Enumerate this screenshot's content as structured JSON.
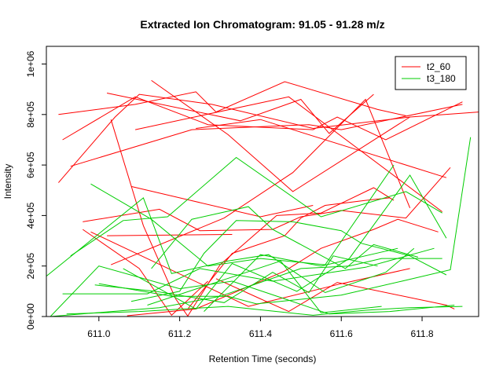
{
  "chart_data": {
    "type": "line",
    "title": "Extracted Ion Chromatogram: 91.05 - 91.28 m/z",
    "xlabel": "Retention Time (seconds)",
    "ylabel": "Intensity",
    "xlim": [
      610.87,
      611.94
    ],
    "ylim": [
      0,
      1070000
    ],
    "x_ticks": [
      {
        "value": 611.0,
        "label": "611.0"
      },
      {
        "value": 611.2,
        "label": "611.2"
      },
      {
        "value": 611.4,
        "label": "611.4"
      },
      {
        "value": 611.6,
        "label": "611.6"
      },
      {
        "value": 611.8,
        "label": "611.8"
      }
    ],
    "y_ticks": [
      {
        "value": 0,
        "label": "0e+00"
      },
      {
        "value": 200000,
        "label": "2e+05"
      },
      {
        "value": 400000,
        "label": "4e+05"
      },
      {
        "value": 600000,
        "label": "6e+05"
      },
      {
        "value": 800000,
        "label": "8e+05"
      },
      {
        "value": 1000000,
        "label": "1e+06"
      }
    ],
    "grid": false,
    "legend_position": "top-right",
    "series": [
      {
        "name": "t2_60",
        "color": "#ff0000",
        "segments": [
          [
            [
              610.9,
              530000
            ],
            [
              611.04,
              790000
            ],
            [
              611.1,
              880000
            ],
            [
              611.28,
              840000
            ],
            [
              611.53,
              745000
            ],
            [
              611.77,
              790000
            ],
            [
              611.94,
              810000
            ]
          ],
          [
            [
              610.9,
              800000
            ],
            [
              611.09,
              840000
            ],
            [
              611.24,
              890000
            ],
            [
              611.29,
              810000
            ],
            [
              611.46,
              930000
            ],
            [
              611.69,
              820000
            ],
            [
              611.76,
              795000
            ]
          ],
          [
            [
              610.91,
              700000
            ],
            [
              611.09,
              870000
            ],
            [
              611.27,
              760000
            ],
            [
              611.53,
              740000
            ],
            [
              611.59,
              790000
            ],
            [
              611.71,
              700000
            ],
            [
              611.9,
              850000
            ]
          ],
          [
            [
              611.02,
              885000
            ],
            [
              611.35,
              775000
            ],
            [
              611.5,
              860000
            ],
            [
              611.57,
              725000
            ],
            [
              611.68,
              880000
            ]
          ],
          [
            [
              611.13,
              935000
            ],
            [
              611.32,
              720000
            ],
            [
              611.48,
              495000
            ],
            [
              611.77,
              790000
            ]
          ],
          [
            [
              611.24,
              745000
            ],
            [
              611.4,
              780000
            ],
            [
              611.86,
              550000
            ]
          ],
          [
            [
              611.09,
              740000
            ],
            [
              611.47,
              870000
            ],
            [
              611.85,
              415000
            ]
          ],
          [
            [
              610.93,
              595000
            ],
            [
              611.23,
              740000
            ],
            [
              611.52,
              760000
            ],
            [
              611.6,
              740000
            ],
            [
              611.9,
              840000
            ]
          ],
          [
            [
              611.03,
              205000
            ],
            [
              611.31,
              390000
            ],
            [
              611.48,
              570000
            ],
            [
              611.66,
              860000
            ],
            [
              611.77,
              430000
            ]
          ],
          [
            [
              611.07,
              3000
            ],
            [
              611.24,
              30000
            ],
            [
              611.46,
              180000
            ],
            [
              611.55,
              270000
            ],
            [
              611.68,
              345000
            ],
            [
              611.74,
              385000
            ],
            [
              611.84,
              335000
            ]
          ],
          [
            [
              610.96,
              345000
            ],
            [
              611.1,
              190000
            ],
            [
              611.18,
              5000
            ],
            [
              611.27,
              140000
            ]
          ],
          [
            [
              611.03,
              780000
            ],
            [
              611.11,
              360000
            ],
            [
              611.19,
              70000
            ],
            [
              611.22,
              2000
            ],
            [
              611.3,
              205000
            ],
            [
              611.44,
              400000
            ],
            [
              611.55,
              410000
            ],
            [
              611.68,
              510000
            ],
            [
              611.73,
              460000
            ]
          ],
          [
            [
              610.96,
              375000
            ],
            [
              611.15,
              425000
            ],
            [
              611.25,
              340000
            ],
            [
              611.43,
              345000
            ],
            [
              611.5,
              395000
            ],
            [
              611.6,
              420000
            ],
            [
              611.76,
              390000
            ],
            [
              611.87,
              590000
            ]
          ],
          [
            [
              610.98,
              335000
            ],
            [
              611.37,
              40000
            ],
            [
              611.6,
              130000
            ],
            [
              611.77,
              190000
            ]
          ],
          [
            [
              611.08,
              515000
            ],
            [
              611.4,
              395000
            ],
            [
              611.53,
              440000
            ]
          ],
          [
            [
              611.02,
              320000
            ],
            [
              611.33,
              325000
            ]
          ],
          [
            [
              611.22,
              30000
            ],
            [
              611.33,
              250000
            ],
            [
              611.46,
              320000
            ],
            [
              611.5,
              390000
            ],
            [
              611.56,
              440000
            ],
            [
              611.66,
              460000
            ],
            [
              611.72,
              470000
            ]
          ],
          [
            [
              611.29,
              150000
            ],
            [
              611.4,
              70000
            ],
            [
              611.47,
              20000
            ],
            [
              611.59,
              135000
            ],
            [
              611.86,
              45000
            ],
            [
              611.88,
              30000
            ]
          ]
        ]
      },
      {
        "name": "t3_180",
        "color": "#00cd00",
        "segments": [
          [
            [
              610.87,
              160000
            ],
            [
              611.11,
              470000
            ],
            [
              611.18,
              170000
            ],
            [
              611.32,
              220000
            ],
            [
              611.42,
              245000
            ],
            [
              611.56,
              95000
            ],
            [
              611.71,
              175000
            ],
            [
              611.78,
              270000
            ]
          ],
          [
            [
              610.93,
              240000
            ],
            [
              611.06,
              380000
            ],
            [
              611.17,
              395000
            ],
            [
              611.34,
              630000
            ],
            [
              611.55,
              395000
            ],
            [
              611.76,
              495000
            ],
            [
              611.85,
              410000
            ]
          ],
          [
            [
              610.98,
              525000
            ],
            [
              611.13,
              385000
            ],
            [
              611.27,
              200000
            ],
            [
              611.4,
              230000
            ],
            [
              611.56,
              205000
            ],
            [
              611.73,
              600000
            ]
          ],
          [
            [
              610.91,
              90000
            ],
            [
              611.12,
              90000
            ],
            [
              611.25,
              190000
            ],
            [
              611.43,
              140000
            ],
            [
              611.66,
              195000
            ],
            [
              611.83,
              270000
            ]
          ],
          [
            [
              610.88,
              0
            ],
            [
              611.0,
              200000
            ],
            [
              611.2,
              110000
            ],
            [
              611.33,
              140000
            ],
            [
              611.46,
              70000
            ],
            [
              611.57,
              10000
            ],
            [
              611.72,
              20000
            ],
            [
              611.88,
              45000
            ]
          ],
          [
            [
              610.99,
              125000
            ],
            [
              611.14,
              100000
            ],
            [
              611.31,
              55000
            ],
            [
              611.43,
              175000
            ],
            [
              611.52,
              95000
            ],
            [
              611.58,
              240000
            ],
            [
              611.69,
              200000
            ]
          ],
          [
            [
              611.0,
              130000
            ],
            [
              611.18,
              80000
            ],
            [
              611.32,
              80000
            ],
            [
              611.39,
              50000
            ],
            [
              611.6,
              85000
            ],
            [
              611.75,
              140000
            ],
            [
              611.87,
              185000
            ],
            [
              611.92,
              710000
            ]
          ],
          [
            [
              611.13,
              190000
            ],
            [
              611.23,
              385000
            ],
            [
              611.37,
              435000
            ],
            [
              611.43,
              345000
            ],
            [
              611.61,
              190000
            ],
            [
              611.68,
              285000
            ],
            [
              611.79,
              235000
            ]
          ],
          [
            [
              611.08,
              60000
            ],
            [
              611.2,
              100000
            ],
            [
              611.26,
              250000
            ],
            [
              611.34,
              380000
            ],
            [
              611.48,
              375000
            ],
            [
              611.6,
              340000
            ],
            [
              611.65,
              290000
            ],
            [
              611.77,
              240000
            ],
            [
              611.86,
              165000
            ]
          ],
          [
            [
              611.06,
              190000
            ],
            [
              611.24,
              30000
            ],
            [
              611.33,
              210000
            ],
            [
              611.49,
              100000
            ],
            [
              611.62,
              230000
            ],
            [
              611.77,
              560000
            ],
            [
              611.86,
              310000
            ]
          ],
          [
            [
              610.92,
              10000
            ],
            [
              611.1,
              20000
            ],
            [
              611.32,
              40000
            ],
            [
              611.53,
              5000
            ],
            [
              611.66,
              25000
            ],
            [
              611.77,
              35000
            ],
            [
              611.9,
              40000
            ]
          ],
          [
            [
              610.88,
              0
            ],
            [
              611.15,
              35000
            ],
            [
              611.3,
              80000
            ],
            [
              611.5,
              190000
            ],
            [
              611.62,
              200000
            ],
            [
              611.7,
              230000
            ],
            [
              611.85,
              230000
            ]
          ],
          [
            [
              611.12,
              45000
            ],
            [
              611.28,
              130000
            ],
            [
              611.45,
              220000
            ],
            [
              611.55,
              15000
            ],
            [
              611.7,
              40000
            ]
          ],
          [
            [
              611.26,
              20000
            ],
            [
              611.4,
              245000
            ],
            [
              611.55,
              200000
            ],
            [
              611.74,
              270000
            ]
          ]
        ]
      }
    ]
  }
}
